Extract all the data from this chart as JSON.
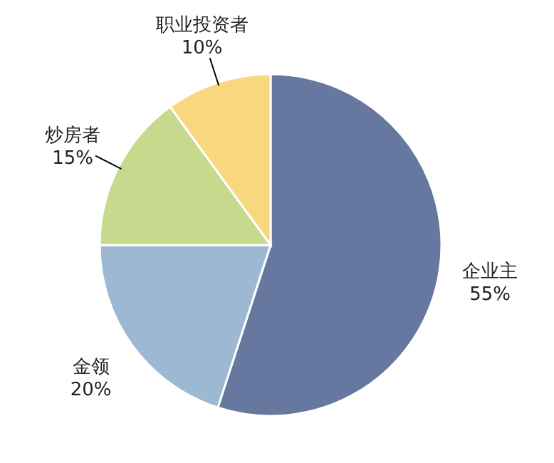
{
  "chart_data": {
    "type": "pie",
    "categories": [
      "企业主",
      "金领",
      "炒房者",
      "职业投资者"
    ],
    "values": [
      55,
      20,
      15,
      10
    ],
    "colors": [
      "#6677a0",
      "#9db8d3",
      "#c6d98c",
      "#f9d77e"
    ],
    "value_labels": [
      "55%",
      "20%",
      "15%",
      "10%"
    ]
  }
}
